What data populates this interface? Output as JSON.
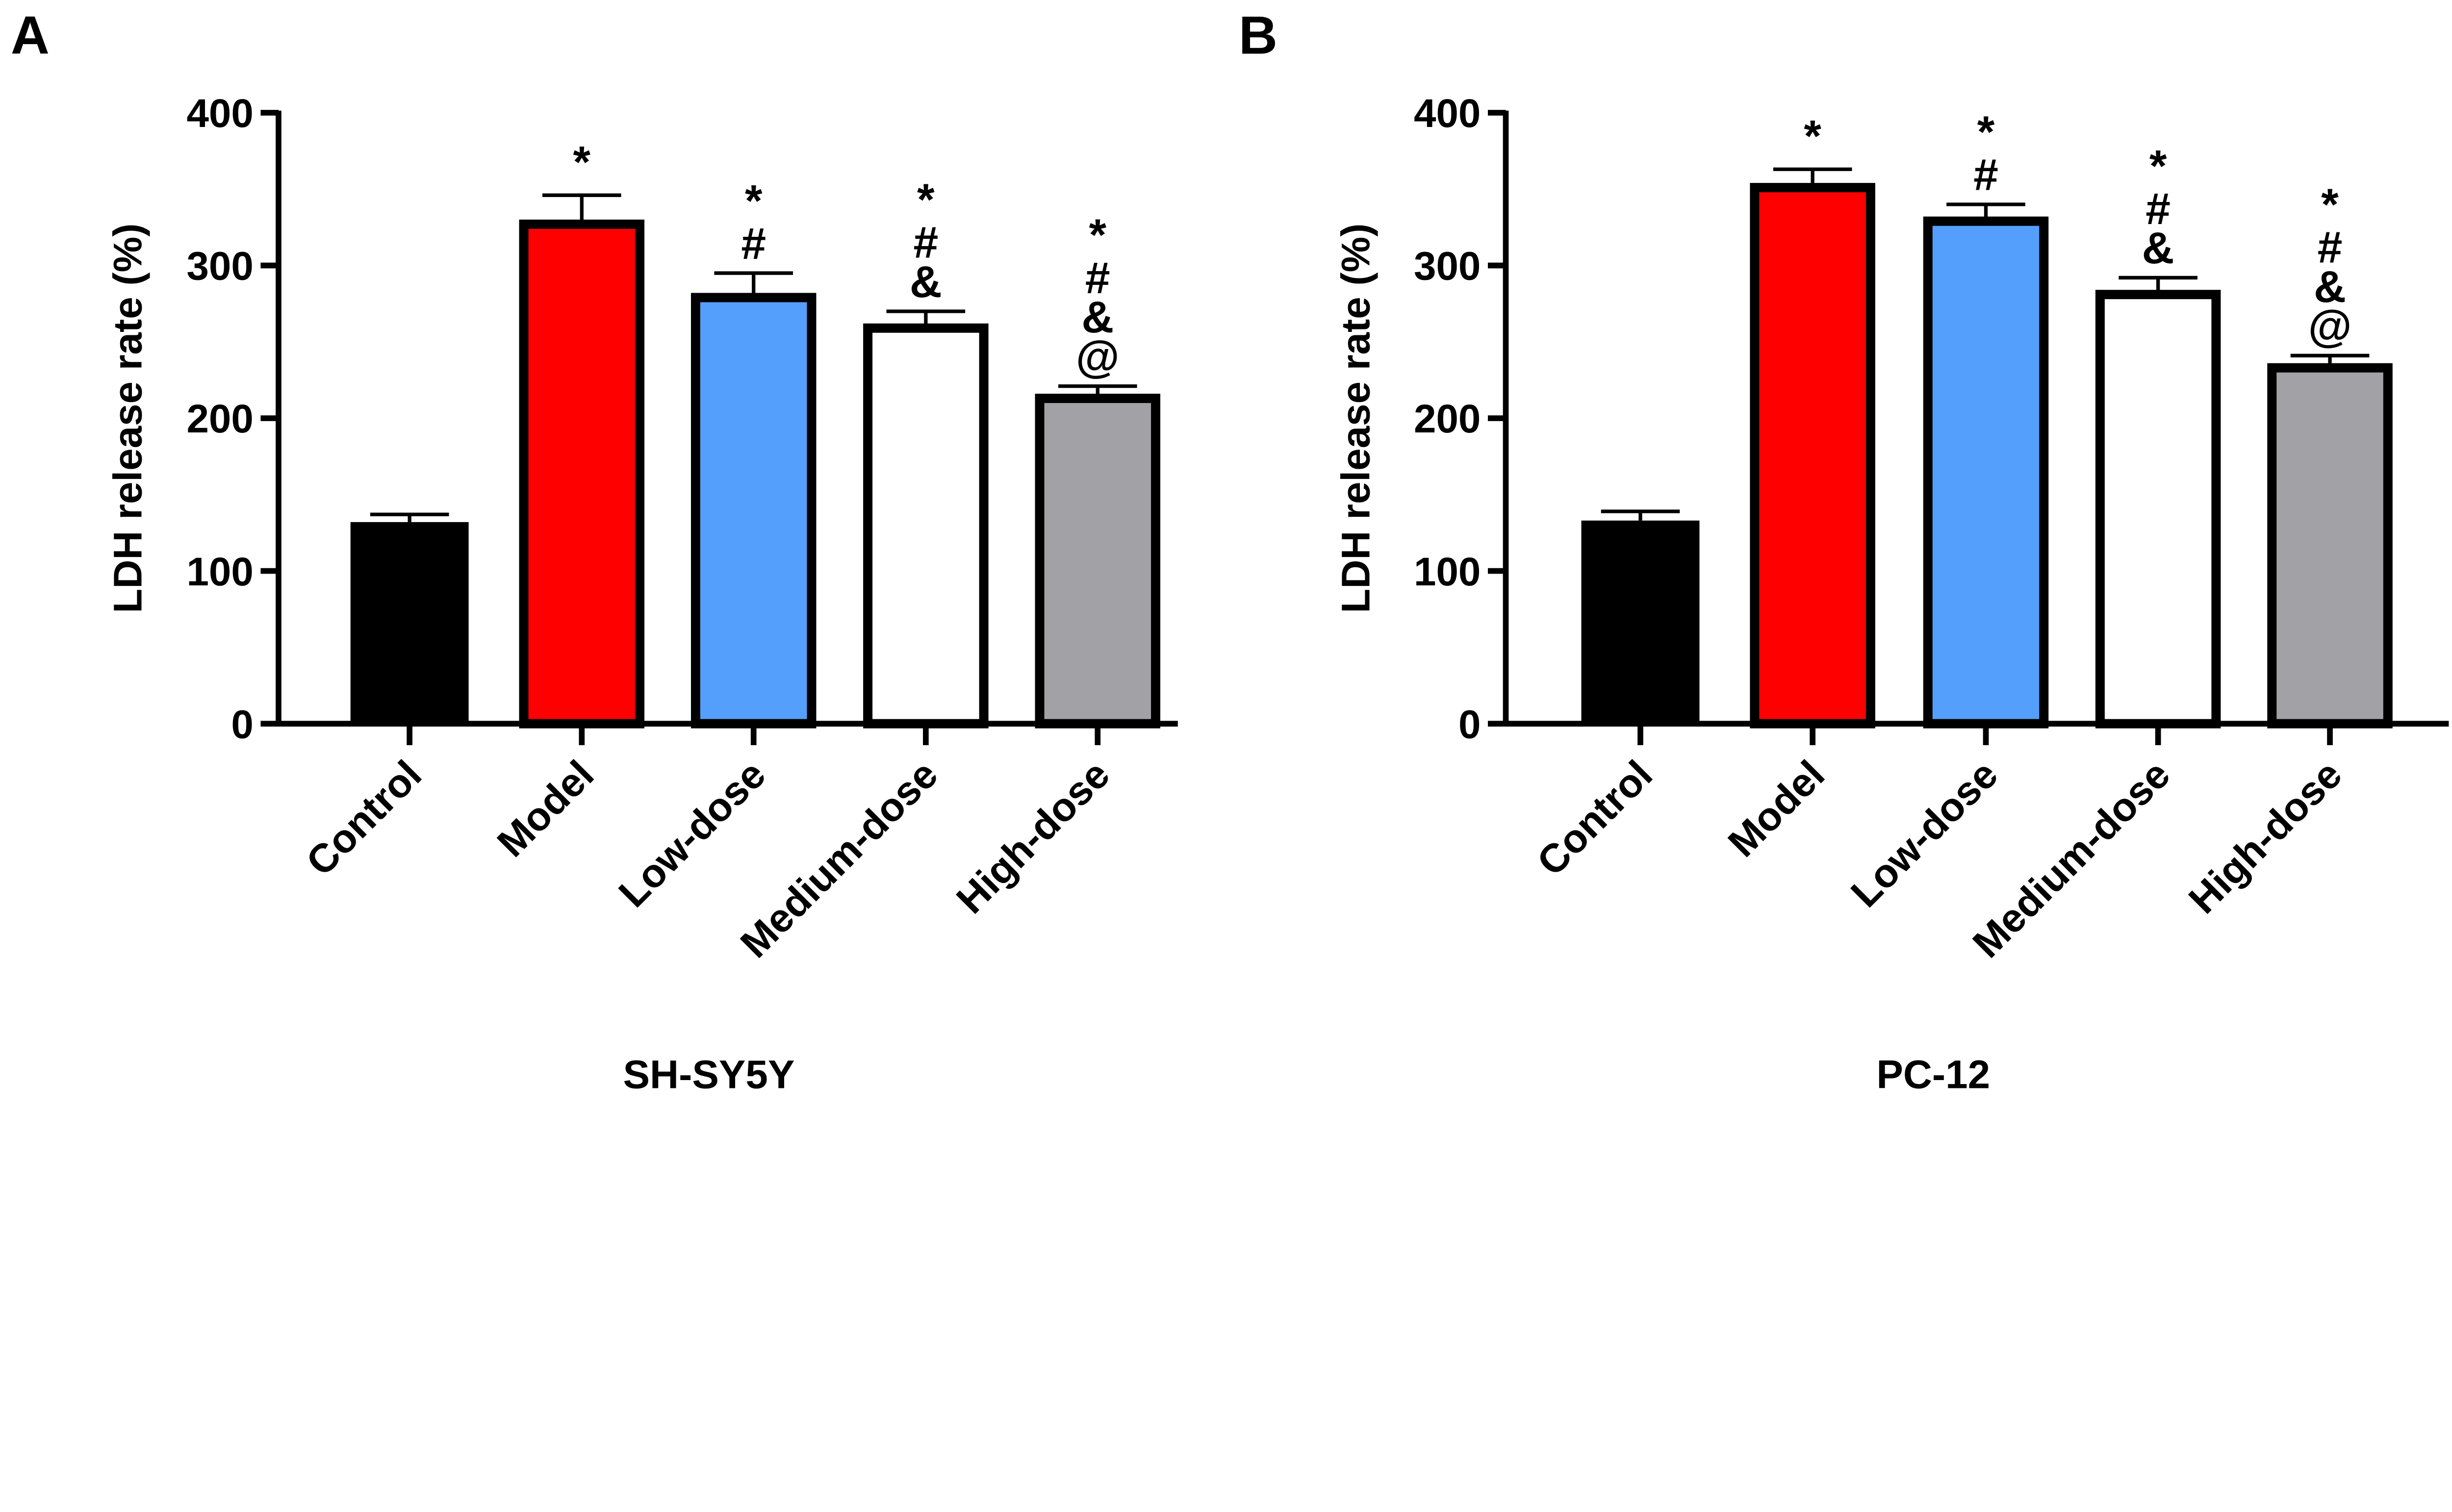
{
  "chart_data": [
    {
      "type": "bar",
      "panel": "A",
      "title": "",
      "xlabel": "SH-SY5Y",
      "ylabel": "LDH release rate (%)",
      "ylim": [
        0,
        400
      ],
      "yticks": [
        0,
        100,
        200,
        300,
        400
      ],
      "grid": false,
      "categories": [
        "Control",
        "Model",
        "Low-dose",
        "Medium-dose",
        "High-dose"
      ],
      "values": [
        132,
        327,
        279,
        259,
        213
      ],
      "errors": [
        5,
        19,
        16,
        11,
        8
      ],
      "colors": [
        "#000000",
        "#ff0000",
        "#559ffc",
        "#ffffff",
        "#a2a1a6"
      ],
      "significance": [
        [],
        [
          "*"
        ],
        [
          "*",
          "#"
        ],
        [
          "*",
          "#",
          "&"
        ],
        [
          "*",
          "#",
          "&",
          "@"
        ]
      ]
    },
    {
      "type": "bar",
      "panel": "B",
      "title": "",
      "xlabel": "PC-12",
      "ylabel": "LDH release rate (%)",
      "ylim": [
        0,
        400
      ],
      "yticks": [
        0,
        100,
        200,
        300,
        400
      ],
      "grid": false,
      "categories": [
        "Control",
        "Model",
        "Low-dose",
        "Medium-dose",
        "High-dose"
      ],
      "values": [
        133,
        351,
        329,
        281,
        233
      ],
      "errors": [
        6,
        12,
        11,
        11,
        8
      ],
      "colors": [
        "#000000",
        "#ff0000",
        "#559ffc",
        "#ffffff",
        "#a2a1a6"
      ],
      "significance": [
        [],
        [
          "*"
        ],
        [
          "*",
          "#"
        ],
        [
          "*",
          "#",
          "&"
        ],
        [
          "*",
          "#",
          "&",
          "@"
        ]
      ]
    }
  ]
}
